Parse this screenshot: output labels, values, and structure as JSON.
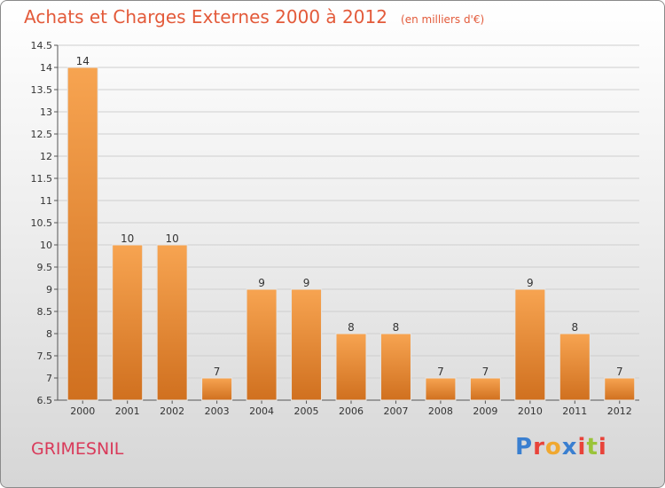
{
  "header": {
    "title": "Achats et Charges Externes 2000 à 2012",
    "unit": "(en milliers d'€)"
  },
  "footer": {
    "commune": "GRIMESNIL",
    "logo_letters": [
      "P",
      "r",
      "o",
      "x",
      "i",
      "t",
      "i"
    ],
    "logo_colors": [
      "#3a7fd0",
      "#e8433a",
      "#f0a830",
      "#3a7fd0",
      "#e8433a",
      "#9ac43a",
      "#e8433a"
    ]
  },
  "chart_data": {
    "type": "bar",
    "categories": [
      "2000",
      "2001",
      "2002",
      "2003",
      "2004",
      "2005",
      "2006",
      "2007",
      "2008",
      "2009",
      "2010",
      "2011",
      "2012"
    ],
    "values": [
      14,
      10,
      10,
      7,
      9,
      9,
      8,
      8,
      7,
      7,
      9,
      8,
      7
    ],
    "data_labels": [
      "14",
      "10",
      "10",
      "7",
      "9",
      "9",
      "8",
      "8",
      "7",
      "7",
      "9",
      "8",
      "7"
    ],
    "ylim": [
      6.5,
      14.5
    ],
    "yticks": [
      "6.5",
      "7",
      "7.5",
      "8",
      "8.5",
      "9",
      "9.5",
      "10",
      "10.5",
      "11",
      "11.5",
      "12",
      "12.5",
      "13",
      "13.5",
      "14",
      "14.5"
    ],
    "bar_color": "#f0953a",
    "grid": true
  }
}
